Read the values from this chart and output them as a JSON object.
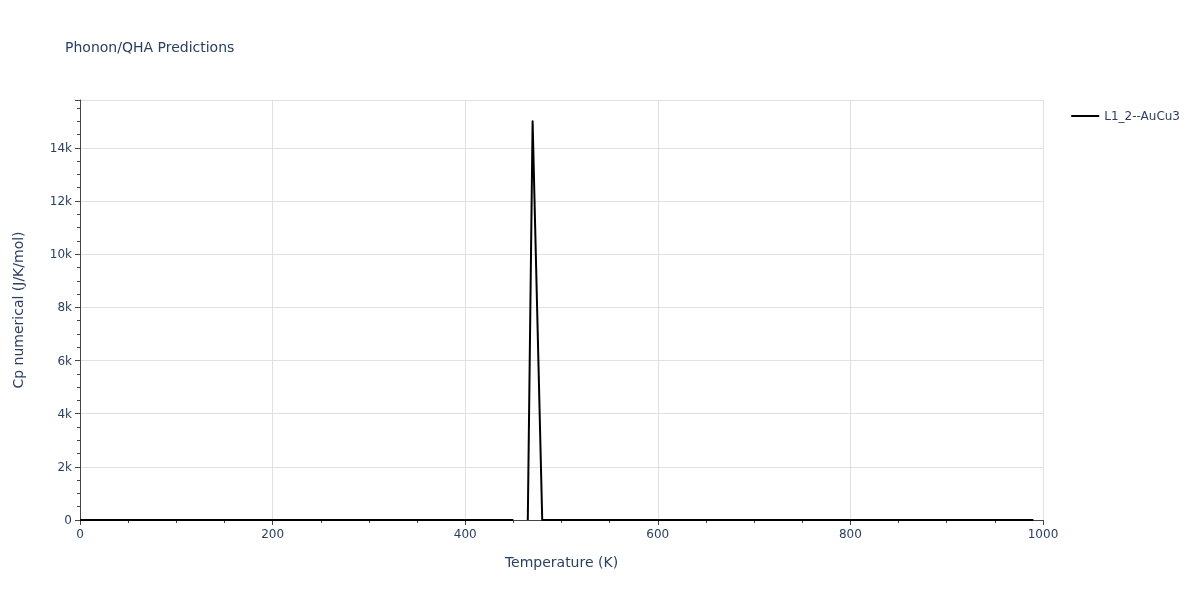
{
  "chart_data": {
    "type": "line",
    "title": "Phonon/QHA Predictions",
    "xlabel": "Temperature (K)",
    "ylabel": "Cp numerical (J/K/mol)",
    "series": [
      {
        "name": "L1_2--AuCu3",
        "color": "#000000",
        "x": [
          0,
          450,
          455,
          465,
          470,
          480,
          990
        ],
        "values": [
          0,
          0,
          null,
          0,
          15000,
          0,
          0
        ]
      }
    ],
    "xlim": [
      0,
      1000
    ],
    "xticks": [
      0,
      200,
      400,
      600,
      800,
      1000
    ],
    "ylim": [
      0,
      15800
    ],
    "yticks": [
      0,
      {
        "value": 2000,
        "label": "2k"
      },
      {
        "value": 4000,
        "label": "4k"
      },
      {
        "value": 6000,
        "label": "6k"
      },
      {
        "value": 8000,
        "label": "8k"
      },
      {
        "value": 10000,
        "label": "10k"
      },
      {
        "value": 12000,
        "label": "12k"
      },
      {
        "value": 14000,
        "label": "14k"
      }
    ],
    "grid": true,
    "legend": "top right",
    "marker": "none",
    "line_style": "solid"
  }
}
